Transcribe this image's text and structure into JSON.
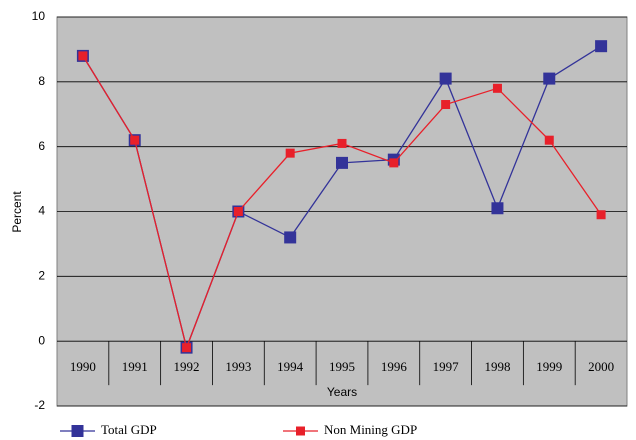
{
  "chart_data": {
    "type": "line",
    "categories": [
      "1990",
      "1991",
      "1992",
      "1993",
      "1994",
      "1995",
      "1996",
      "1997",
      "1998",
      "1999",
      "2000"
    ],
    "series": [
      {
        "name": "Total GDP",
        "color": "#333399",
        "values": [
          8.8,
          6.2,
          -0.2,
          4.0,
          3.2,
          5.5,
          5.6,
          8.1,
          4.1,
          8.1,
          9.1
        ]
      },
      {
        "name": "Non Mining GDP",
        "color": "#e8202a",
        "values": [
          8.8,
          6.2,
          -0.2,
          4.0,
          5.8,
          6.1,
          5.5,
          7.3,
          7.8,
          6.2,
          3.9
        ]
      }
    ],
    "ylabel": "Percent",
    "xlabel": "Years",
    "ylim": [
      -2,
      10
    ],
    "yticks": [
      -2,
      0,
      2,
      4,
      6,
      8,
      10
    ],
    "grid": true,
    "legend": "bottom"
  }
}
